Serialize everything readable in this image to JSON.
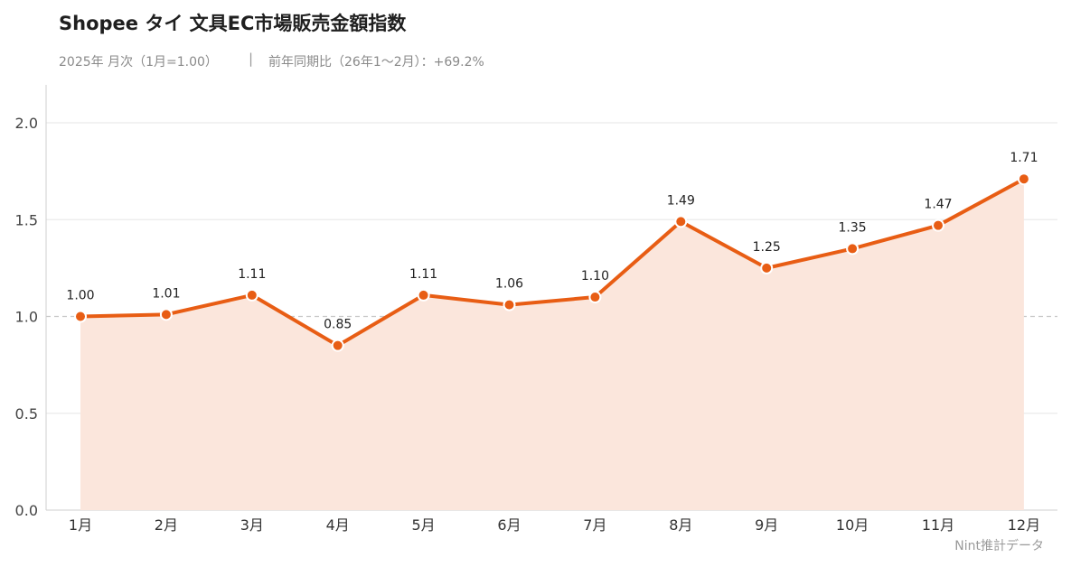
{
  "title": "Shopee タイ 文具EC市場販売金額指数",
  "subtitle": "2025年 月次（1月=1.00）",
  "separator": "|",
  "yoy_text": "前年同期比（26年1〜2月）：+69.2%",
  "source": "Nint推計データ",
  "colors": {
    "line": "#e85d14",
    "fill": "#fbe6dc",
    "grid": "#e6e6e6",
    "baseline": "#c8c8c8"
  },
  "chart_data": {
    "type": "area",
    "categories": [
      "1月",
      "2月",
      "3月",
      "4月",
      "5月",
      "6月",
      "7月",
      "8月",
      "9月",
      "10月",
      "11月",
      "12月"
    ],
    "values": [
      1.0,
      1.01,
      1.11,
      0.85,
      1.11,
      1.06,
      1.1,
      1.49,
      1.25,
      1.35,
      1.47,
      1.71
    ],
    "value_labels": [
      "1.00",
      "1.01",
      "1.11",
      "0.85",
      "1.11",
      "1.06",
      "1.10",
      "1.49",
      "1.25",
      "1.35",
      "1.47",
      "1.71"
    ],
    "yticks": [
      "0.0",
      "0.5",
      "1.0",
      "1.5",
      "2.0"
    ],
    "ylim": [
      0,
      2.2
    ],
    "reference_line": 1.0,
    "grid": true
  }
}
